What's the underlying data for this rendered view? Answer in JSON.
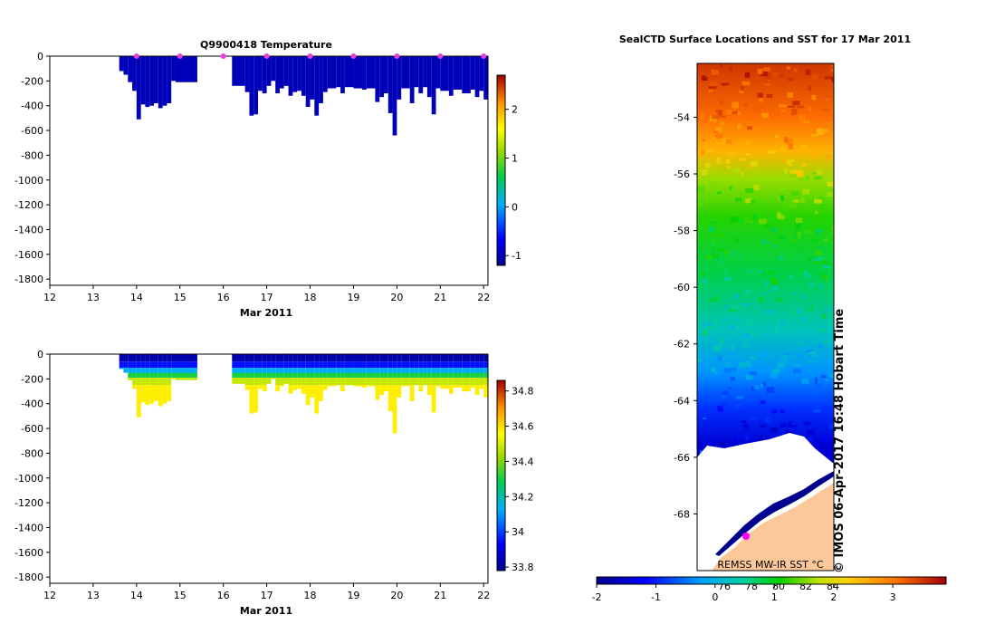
{
  "chart_data": [
    {
      "type": "heatmap",
      "title": "Q9900418  Temperature",
      "xlabel": "Mar 2011",
      "ylabel": "",
      "xlim": [
        12,
        22.1
      ],
      "ylim": [
        -1850,
        0
      ],
      "x_ticks": [
        12,
        13,
        14,
        15,
        16,
        17,
        18,
        19,
        20,
        21,
        22
      ],
      "y_ticks": [
        0,
        -200,
        -400,
        -600,
        -800,
        -1000,
        -1200,
        -1400,
        -1600,
        -1800
      ],
      "colorbar": {
        "min": -1.2,
        "max": 2.7,
        "ticks": [
          -1,
          0,
          1,
          2
        ]
      },
      "marker_days": [
        14,
        15,
        16,
        17,
        18,
        19,
        20,
        21,
        22
      ],
      "profiles": [
        [
          13.6,
          13.7,
          -120
        ],
        [
          13.7,
          13.8,
          -150
        ],
        [
          13.8,
          13.9,
          -210
        ],
        [
          13.9,
          14.0,
          -280
        ],
        [
          14.0,
          14.1,
          -510
        ],
        [
          14.1,
          14.2,
          -390
        ],
        [
          14.2,
          14.3,
          -410
        ],
        [
          14.3,
          14.4,
          -400
        ],
        [
          14.4,
          14.5,
          -380
        ],
        [
          14.5,
          14.6,
          -420
        ],
        [
          14.6,
          14.7,
          -400
        ],
        [
          14.7,
          14.8,
          -380
        ],
        [
          14.8,
          14.9,
          -200
        ],
        [
          14.9,
          15.4,
          -210
        ],
        [
          16.2,
          16.5,
          -240
        ],
        [
          16.5,
          16.6,
          -290
        ],
        [
          16.6,
          16.7,
          -480
        ],
        [
          16.7,
          16.8,
          -470
        ],
        [
          16.8,
          16.9,
          -280
        ],
        [
          16.9,
          17.0,
          -300
        ],
        [
          17.0,
          17.1,
          -240
        ],
        [
          17.1,
          17.2,
          -200
        ],
        [
          17.2,
          17.3,
          -300
        ],
        [
          17.3,
          17.4,
          -260
        ],
        [
          17.4,
          17.5,
          -240
        ],
        [
          17.5,
          17.6,
          -320
        ],
        [
          17.6,
          17.7,
          -290
        ],
        [
          17.7,
          17.8,
          -280
        ],
        [
          17.8,
          17.9,
          -320
        ],
        [
          17.9,
          18.0,
          -410
        ],
        [
          18.0,
          18.1,
          -350
        ],
        [
          18.1,
          18.2,
          -480
        ],
        [
          18.2,
          18.3,
          -380
        ],
        [
          18.3,
          18.4,
          -290
        ],
        [
          18.4,
          18.6,
          -260
        ],
        [
          18.6,
          18.7,
          -250
        ],
        [
          18.7,
          18.8,
          -300
        ],
        [
          18.8,
          19.0,
          -250
        ],
        [
          19.0,
          19.2,
          -260
        ],
        [
          19.2,
          19.3,
          -270
        ],
        [
          19.3,
          19.5,
          -260
        ],
        [
          19.5,
          19.6,
          -370
        ],
        [
          19.6,
          19.7,
          -330
        ],
        [
          19.7,
          19.8,
          -300
        ],
        [
          19.8,
          19.9,
          -460
        ],
        [
          19.9,
          20.0,
          -640
        ],
        [
          20.0,
          20.1,
          -350
        ],
        [
          20.1,
          20.3,
          -260
        ],
        [
          20.3,
          20.4,
          -380
        ],
        [
          20.4,
          20.5,
          -250
        ],
        [
          20.5,
          20.6,
          -300
        ],
        [
          20.6,
          20.7,
          -250
        ],
        [
          20.7,
          20.8,
          -330
        ],
        [
          20.8,
          20.9,
          -470
        ],
        [
          20.9,
          21.0,
          -260
        ],
        [
          21.0,
          21.2,
          -280
        ],
        [
          21.2,
          21.3,
          -320
        ],
        [
          21.3,
          21.5,
          -270
        ],
        [
          21.5,
          21.7,
          -300
        ],
        [
          21.7,
          21.8,
          -270
        ],
        [
          21.8,
          21.9,
          -330
        ],
        [
          21.9,
          22.0,
          -280
        ],
        [
          22.0,
          22.1,
          -350
        ]
      ]
    },
    {
      "type": "heatmap",
      "title": "",
      "xlabel": "Mar 2011",
      "ylabel": "",
      "xlim": [
        12,
        22.1
      ],
      "ylim": [
        -1850,
        0
      ],
      "x_ticks": [
        12,
        13,
        14,
        15,
        16,
        17,
        18,
        19,
        20,
        21,
        22
      ],
      "y_ticks": [
        0,
        -200,
        -400,
        -600,
        -800,
        -1000,
        -1200,
        -1400,
        -1600,
        -1800
      ],
      "colorbar": {
        "min": 33.78,
        "max": 34.86,
        "ticks": [
          33.8,
          34,
          34.2,
          34.4,
          34.6,
          34.8
        ]
      },
      "layers": [
        {
          "depth": 0,
          "value": 33.82
        },
        {
          "depth": -60,
          "value": 33.95
        },
        {
          "depth": -110,
          "value": 34.12
        },
        {
          "depth": -150,
          "value": 34.3
        },
        {
          "depth": -190,
          "value": 34.48
        },
        {
          "depth": -250,
          "value": 34.58
        }
      ]
    },
    {
      "type": "heatmap",
      "title": "SealCTD Surface Locations and SST for 17 Mar 2011",
      "ylabel": "",
      "ylim": [
        -70,
        -52.1
      ],
      "y_ticks": [
        -54,
        -56,
        -58,
        -60,
        -62,
        -64,
        -66,
        -68
      ],
      "longitude_labels": [
        "76",
        "78",
        "80",
        "82",
        "84"
      ],
      "colorbar": {
        "min": -2,
        "max": 3.9,
        "ticks": [
          -2,
          -1,
          0,
          1,
          2,
          3
        ]
      },
      "field": [
        {
          "lat": -52.1,
          "sst": 3.5
        },
        {
          "lat": -54,
          "sst": 3.1
        },
        {
          "lat": -55.2,
          "sst": 2.5
        },
        {
          "lat": -56.2,
          "sst": 1.6
        },
        {
          "lat": -57.5,
          "sst": 1.2
        },
        {
          "lat": -59.5,
          "sst": 0.8
        },
        {
          "lat": -61.5,
          "sst": 0.3
        },
        {
          "lat": -63,
          "sst": -0.3
        },
        {
          "lat": -64.3,
          "sst": -0.9
        },
        {
          "lat": -65.6,
          "sst": -1.5
        }
      ],
      "annotation": "REMSS MW-IR SST °C",
      "side_text": "© IMOS 06-Apr-2017 16:48 Hobart Time",
      "colors": {
        "land": "#fcc899",
        "ice": "#ffffff",
        "coast_water": "#00008f",
        "marker": "#ff00ff"
      }
    }
  ]
}
